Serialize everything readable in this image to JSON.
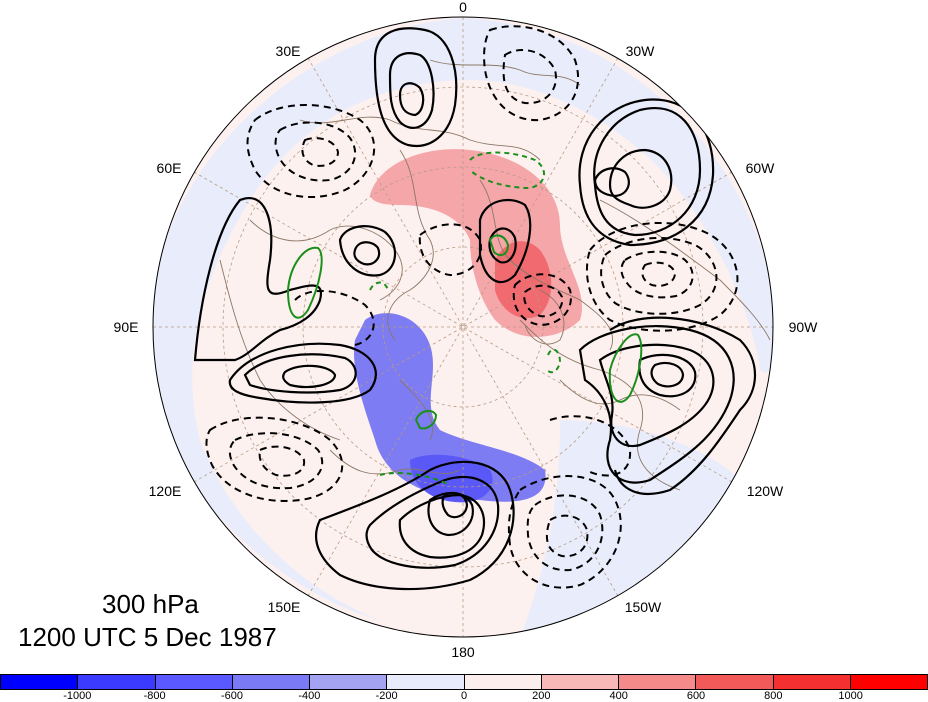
{
  "figure": {
    "level": "300 hPa",
    "valid_time": "1200 UTC 5 Dec 1987"
  },
  "map": {
    "projection": "north-polar-stereographic",
    "longitude_labels": [
      "0",
      "30W",
      "60W",
      "90W",
      "120W",
      "150W",
      "180",
      "150E",
      "120E",
      "90E",
      "60E",
      "30E"
    ],
    "shading_colors": {
      "negative_strong": "#3b3bff",
      "negative_medium": "#7b7bf2",
      "negative_weak": "#e8ebfb",
      "positive_weak": "#fdf0ef",
      "positive_medium": "#f4a4a7",
      "positive_strong": "#f26c70"
    },
    "contour_colors": {
      "height_anomaly": "#000000",
      "jet": "#1a8f1a"
    }
  },
  "colorbar": {
    "labels": [
      "-1000",
      "-800",
      "-600",
      "-400",
      "-200",
      "0",
      "200",
      "400",
      "600",
      "800",
      "1000"
    ],
    "colors": [
      "#0000ff",
      "#3b3bff",
      "#5959ff",
      "#7a7af5",
      "#a3a3f2",
      "#e8ebfb",
      "#fdeeee",
      "#f8b8b8",
      "#f58a8a",
      "#f25a5a",
      "#f53030",
      "#ff0000"
    ]
  }
}
